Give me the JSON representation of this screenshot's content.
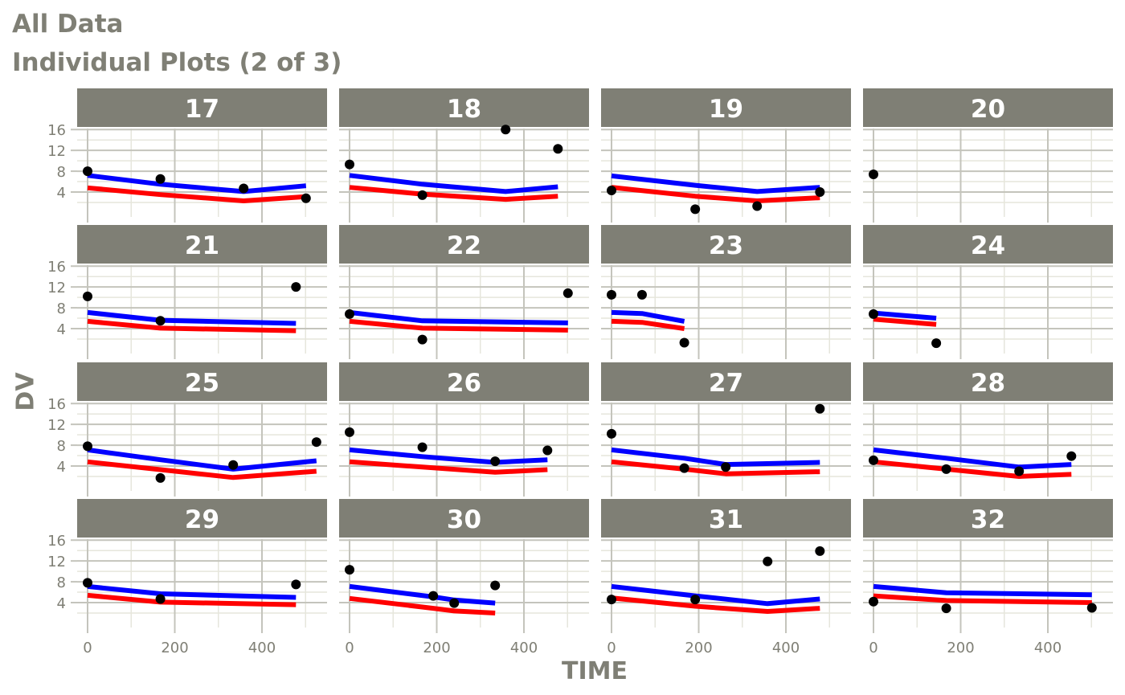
{
  "title": "All Data",
  "subtitle": "Individual Plots (2 of 3)",
  "chart_data": {
    "type": "scatter",
    "xlabel": "TIME",
    "ylabel": "DV",
    "x_ticks": [
      0,
      200,
      400
    ],
    "y_ticks": [
      4,
      8,
      12,
      16
    ],
    "grid": true,
    "colors": {
      "strip": "#7f7f75",
      "panel": "#ffffff",
      "grid": "#e6e6dc",
      "grid_major": "#c4c4bc",
      "line_blue": "#0000ff",
      "line_red": "#ff0000",
      "points": "#000000"
    },
    "panels": [
      {
        "id": "17",
        "points": [
          [
            0,
            8.0
          ],
          [
            167,
            6.5
          ],
          [
            358,
            4.7
          ],
          [
            501,
            2.8
          ]
        ],
        "blue": [
          [
            0,
            7.2
          ],
          [
            167,
            5.5
          ],
          [
            358,
            4.1
          ],
          [
            501,
            5.2
          ]
        ],
        "red": [
          [
            0,
            4.8
          ],
          [
            167,
            3.5
          ],
          [
            358,
            2.3
          ],
          [
            501,
            3.1
          ]
        ]
      },
      {
        "id": "18",
        "points": [
          [
            0,
            9.3
          ],
          [
            167,
            3.4
          ],
          [
            358,
            16.0
          ],
          [
            478,
            12.3
          ]
        ],
        "blue": [
          [
            0,
            7.2
          ],
          [
            167,
            5.5
          ],
          [
            358,
            4.1
          ],
          [
            478,
            5.0
          ]
        ],
        "red": [
          [
            0,
            4.9
          ],
          [
            167,
            3.6
          ],
          [
            358,
            2.6
          ],
          [
            478,
            3.2
          ]
        ]
      },
      {
        "id": "19",
        "points": [
          [
            0,
            4.3
          ],
          [
            192,
            0.7
          ],
          [
            334,
            1.3
          ],
          [
            478,
            4.0
          ]
        ],
        "blue": [
          [
            0,
            7.1
          ],
          [
            192,
            5.3
          ],
          [
            334,
            4.1
          ],
          [
            478,
            4.9
          ]
        ],
        "red": [
          [
            0,
            4.9
          ],
          [
            192,
            3.2
          ],
          [
            334,
            2.3
          ],
          [
            478,
            2.9
          ]
        ]
      },
      {
        "id": "20",
        "points": [
          [
            0,
            7.4
          ]
        ],
        "blue": [],
        "red": []
      },
      {
        "id": "21",
        "points": [
          [
            0,
            10.2
          ],
          [
            167,
            5.5
          ],
          [
            478,
            12.0
          ]
        ],
        "blue": [
          [
            0,
            7.1
          ],
          [
            167,
            5.6
          ],
          [
            478,
            5.0
          ]
        ],
        "red": [
          [
            0,
            5.4
          ],
          [
            167,
            4.1
          ],
          [
            478,
            3.6
          ]
        ]
      },
      {
        "id": "22",
        "points": [
          [
            0,
            6.8
          ],
          [
            167,
            1.9
          ],
          [
            501,
            10.8
          ]
        ],
        "blue": [
          [
            0,
            7.1
          ],
          [
            167,
            5.5
          ],
          [
            501,
            5.1
          ]
        ],
        "red": [
          [
            0,
            5.4
          ],
          [
            167,
            4.1
          ],
          [
            501,
            3.7
          ]
        ]
      },
      {
        "id": "23",
        "points": [
          [
            0,
            10.5
          ],
          [
            70,
            10.5
          ],
          [
            167,
            1.3
          ]
        ],
        "blue": [
          [
            0,
            7.1
          ],
          [
            70,
            6.9
          ],
          [
            167,
            5.4
          ]
        ],
        "red": [
          [
            0,
            5.4
          ],
          [
            70,
            5.2
          ],
          [
            167,
            4.0
          ]
        ]
      },
      {
        "id": "24",
        "points": [
          [
            0,
            6.8
          ],
          [
            144,
            1.2
          ]
        ],
        "blue": [
          [
            0,
            7.0
          ],
          [
            144,
            6.0
          ]
        ],
        "red": [
          [
            0,
            5.8
          ],
          [
            144,
            4.8
          ]
        ]
      },
      {
        "id": "25",
        "points": [
          [
            0,
            7.8
          ],
          [
            167,
            1.7
          ],
          [
            334,
            4.2
          ],
          [
            525,
            8.6
          ]
        ],
        "blue": [
          [
            0,
            7.1
          ],
          [
            167,
            5.2
          ],
          [
            334,
            3.4
          ],
          [
            525,
            5.0
          ]
        ],
        "red": [
          [
            0,
            4.8
          ],
          [
            167,
            3.3
          ],
          [
            334,
            1.8
          ],
          [
            525,
            3.0
          ]
        ]
      },
      {
        "id": "26",
        "points": [
          [
            0,
            10.5
          ],
          [
            167,
            7.6
          ],
          [
            334,
            4.9
          ],
          [
            454,
            7.0
          ]
        ],
        "blue": [
          [
            0,
            7.1
          ],
          [
            167,
            5.8
          ],
          [
            334,
            4.7
          ],
          [
            454,
            5.2
          ]
        ],
        "red": [
          [
            0,
            4.8
          ],
          [
            167,
            3.8
          ],
          [
            334,
            2.8
          ],
          [
            454,
            3.3
          ]
        ]
      },
      {
        "id": "27",
        "points": [
          [
            0,
            10.2
          ],
          [
            167,
            3.6
          ],
          [
            262,
            3.8
          ],
          [
            478,
            15.0
          ]
        ],
        "blue": [
          [
            0,
            7.1
          ],
          [
            167,
            5.5
          ],
          [
            262,
            4.3
          ],
          [
            478,
            4.7
          ]
        ],
        "red": [
          [
            0,
            4.8
          ],
          [
            167,
            3.4
          ],
          [
            262,
            2.5
          ],
          [
            478,
            2.9
          ]
        ]
      },
      {
        "id": "28",
        "points": [
          [
            0,
            5.1
          ],
          [
            167,
            3.4
          ],
          [
            334,
            3.0
          ],
          [
            454,
            5.9
          ]
        ],
        "blue": [
          [
            0,
            7.1
          ],
          [
            167,
            5.5
          ],
          [
            334,
            3.8
          ],
          [
            454,
            4.3
          ]
        ],
        "red": [
          [
            0,
            4.8
          ],
          [
            167,
            3.4
          ],
          [
            334,
            2.0
          ],
          [
            454,
            2.4
          ]
        ]
      },
      {
        "id": "29",
        "points": [
          [
            0,
            7.8
          ],
          [
            167,
            4.7
          ],
          [
            478,
            7.5
          ]
        ],
        "blue": [
          [
            0,
            7.1
          ],
          [
            167,
            5.7
          ],
          [
            478,
            5.0
          ]
        ],
        "red": [
          [
            0,
            5.4
          ],
          [
            167,
            4.1
          ],
          [
            478,
            3.6
          ]
        ]
      },
      {
        "id": "30",
        "points": [
          [
            0,
            10.3
          ],
          [
            192,
            5.3
          ],
          [
            240,
            3.9
          ],
          [
            334,
            7.3
          ]
        ],
        "blue": [
          [
            0,
            7.1
          ],
          [
            192,
            5.1
          ],
          [
            240,
            4.5
          ],
          [
            334,
            3.9
          ]
        ],
        "red": [
          [
            0,
            4.8
          ],
          [
            192,
            2.9
          ],
          [
            240,
            2.4
          ],
          [
            334,
            2.0
          ]
        ]
      },
      {
        "id": "31",
        "points": [
          [
            0,
            4.6
          ],
          [
            192,
            4.6
          ],
          [
            358,
            11.9
          ],
          [
            478,
            13.9
          ]
        ],
        "blue": [
          [
            0,
            7.1
          ],
          [
            192,
            5.3
          ],
          [
            358,
            3.8
          ],
          [
            478,
            4.7
          ]
        ],
        "red": [
          [
            0,
            4.9
          ],
          [
            192,
            3.3
          ],
          [
            358,
            2.3
          ],
          [
            478,
            2.9
          ]
        ]
      },
      {
        "id": "32",
        "points": [
          [
            0,
            4.2
          ],
          [
            167,
            2.9
          ],
          [
            501,
            3.0
          ]
        ],
        "blue": [
          [
            0,
            7.1
          ],
          [
            167,
            5.9
          ],
          [
            501,
            5.5
          ]
        ],
        "red": [
          [
            0,
            5.3
          ],
          [
            167,
            4.4
          ],
          [
            501,
            4.0
          ]
        ]
      }
    ]
  }
}
